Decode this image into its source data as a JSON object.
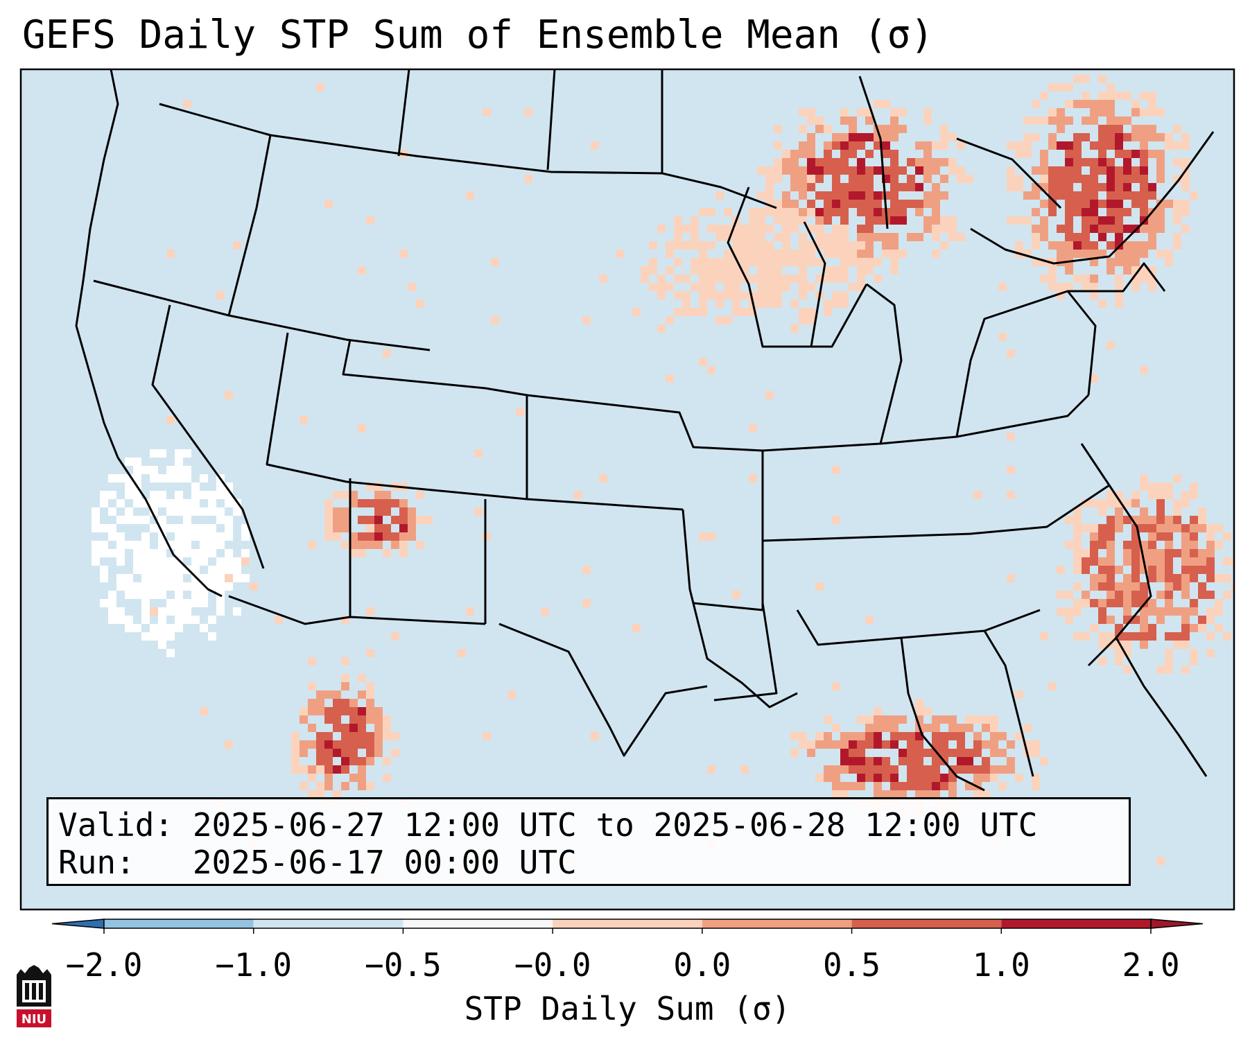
{
  "title": "GEFS Daily STP Sum of Ensemble Mean (σ)",
  "info": {
    "valid_label": "Valid: 2025-06-27 12:00 UTC to 2025-06-28 12:00 UTC",
    "run_label": "Run:   2025-06-17 00:00 UTC"
  },
  "colorbar": {
    "title": "STP Daily Sum (σ)",
    "tick_labels": [
      "−2.0",
      "−1.0",
      "−0.5",
      "−0.0",
      "0.0",
      "0.5",
      "1.0",
      "2.0"
    ],
    "colors": {
      "under": "#2f6fb0",
      "bins": [
        "#4c8cc4",
        "#93c3e0",
        "#d1e5f0",
        "#f7f7f7",
        "#fbd3bd",
        "#f0a082",
        "#d6604d",
        "#b2182b"
      ],
      "over": "#a0162b"
    }
  },
  "map": {
    "background_color": "#d1e5f0",
    "regions": [
      {
        "name": "great-lakes-ontario-quebec",
        "category": "+1.0 to +2.0"
      },
      {
        "name": "new-england-canada",
        "category": "+1.0 to +2.0"
      },
      {
        "name": "gulf-of-mexico-south",
        "category": "+1.0 to +2.0"
      },
      {
        "name": "atlantic-offshore",
        "category": "+0.5 to +1.0"
      },
      {
        "name": "northwest-mexico",
        "category": "+1.0 to +2.0"
      },
      {
        "name": "arizona-new-mexico",
        "category": "+1.0 to +2.0"
      },
      {
        "name": "upper-midwest",
        "category": "0.0 to +0.5"
      },
      {
        "name": "pacific-offshore-california",
        "category": "-0.0 to 0.0"
      },
      {
        "name": "mid-atlantic-coast",
        "category": "-0.5 to -0.0"
      },
      {
        "name": "wyoming-montana",
        "category": "-0.5 to -0.0"
      }
    ]
  },
  "logo": {
    "text": "NIU"
  }
}
